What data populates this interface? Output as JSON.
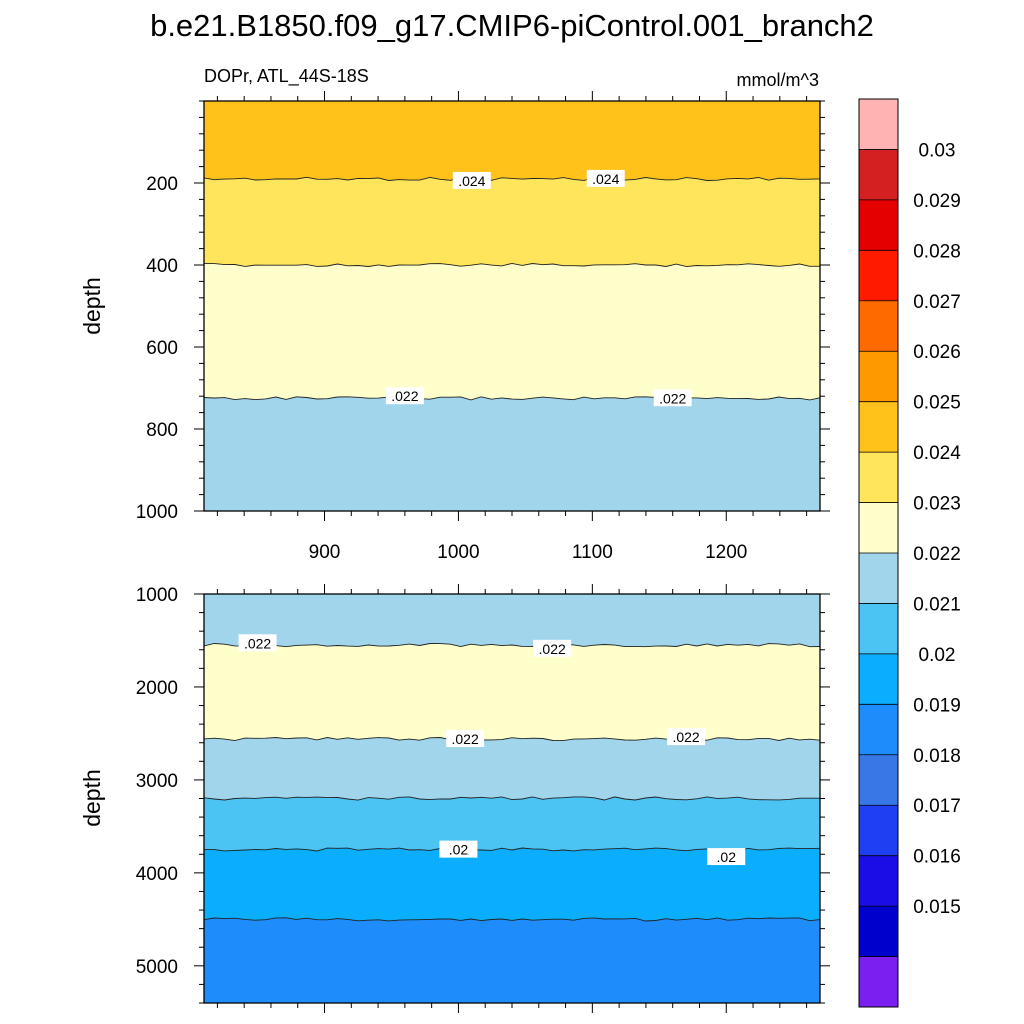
{
  "title": "b.e21.B1850.f09_g17.CMIP6-piControl.001_branch2",
  "variable_label": "DOPr, ATL_44S-18S",
  "units_label": "mmol/m^3",
  "chart_data": [
    {
      "type": "contour",
      "panel": "upper",
      "ylabel": "depth",
      "y_reversed": true,
      "xlim": [
        810,
        1270
      ],
      "ylim": [
        0,
        1000
      ],
      "x_ticks": [
        900,
        1000,
        1100,
        1200
      ],
      "y_ticks": [
        200,
        400,
        600,
        800,
        1000
      ],
      "bands": [
        {
          "range": [
            0.024,
            0.025
          ],
          "depth_top": 0,
          "depth_bottom": 190
        },
        {
          "range": [
            0.023,
            0.024
          ],
          "depth_top": 190,
          "depth_bottom": 400
        },
        {
          "range": [
            0.022,
            0.023
          ],
          "depth_top": 400,
          "depth_bottom": 725
        },
        {
          "range": [
            0.021,
            0.022
          ],
          "depth_top": 725,
          "depth_bottom": 1000
        }
      ],
      "contour_labels": [
        {
          "text": ".024",
          "x": 1010,
          "y": 195
        },
        {
          "text": ".024",
          "x": 1110,
          "y": 190
        },
        {
          "text": ".022",
          "x": 960,
          "y": 720
        },
        {
          "text": ".022",
          "x": 1160,
          "y": 725
        }
      ]
    },
    {
      "type": "contour",
      "panel": "lower",
      "ylabel": "depth",
      "y_reversed": true,
      "xlim": [
        810,
        1270
      ],
      "ylim": [
        1000,
        5400
      ],
      "x_ticks": [
        900,
        1000,
        1100,
        1200
      ],
      "y_ticks": [
        1000,
        2000,
        3000,
        4000,
        5000
      ],
      "bands": [
        {
          "range": [
            0.021,
            0.022
          ],
          "depth_top": 1000,
          "depth_bottom": 1550
        },
        {
          "range": [
            0.022,
            0.023
          ],
          "depth_top": 1550,
          "depth_bottom": 2560
        },
        {
          "range": [
            0.021,
            0.022
          ],
          "depth_top": 2560,
          "depth_bottom": 3200
        },
        {
          "range": [
            0.02,
            0.021
          ],
          "depth_top": 3200,
          "depth_bottom": 3750
        },
        {
          "range": [
            0.019,
            0.02
          ],
          "depth_top": 3750,
          "depth_bottom": 4500
        },
        {
          "range": [
            0.018,
            0.019
          ],
          "depth_top": 4500,
          "depth_bottom": 5400
        }
      ],
      "contour_labels": [
        {
          "text": ".022",
          "x": 850,
          "y": 1530
        },
        {
          "text": ".022",
          "x": 1070,
          "y": 1590
        },
        {
          "text": ".022",
          "x": 1005,
          "y": 2560
        },
        {
          "text": ".022",
          "x": 1170,
          "y": 2540
        },
        {
          "text": ".02",
          "x": 1000,
          "y": 3750
        },
        {
          "text": ".02",
          "x": 1200,
          "y": 3830
        }
      ]
    }
  ],
  "colorbar": {
    "labels": [
      "0.03",
      "0.029",
      "0.028",
      "0.027",
      "0.026",
      "0.025",
      "0.024",
      "0.023",
      "0.022",
      "0.021",
      "0.02",
      "0.019",
      "0.018",
      "0.017",
      "0.016",
      "0.015"
    ],
    "colors": [
      "#ffb3b3",
      "#d42020",
      "#e50000",
      "#ff1a00",
      "#ff6a00",
      "#ff9900",
      "#ffc21a",
      "#ffe55c",
      "#ffffcc",
      "#a0d5ec",
      "#4bc4f4",
      "#0aaefc",
      "#1e8cfa",
      "#3877e6",
      "#1f40f0",
      "#1a0de6",
      "#0000cc",
      "#7a1ff0"
    ]
  }
}
